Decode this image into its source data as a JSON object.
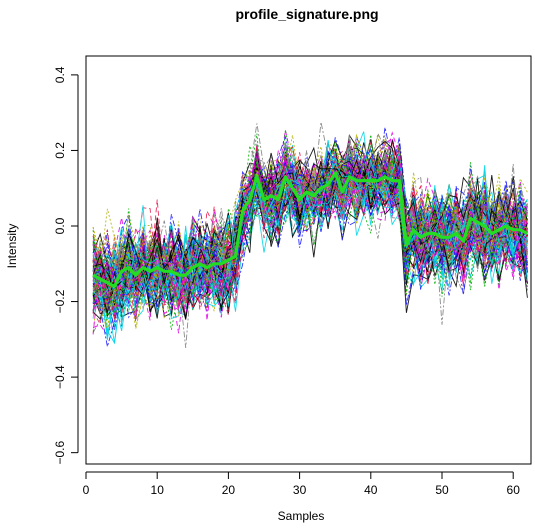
{
  "chart_data": {
    "type": "line",
    "title": "profile_signature.png",
    "xlabel": "Samples",
    "ylabel": "Intensity",
    "xlim": [
      0,
      62.5
    ],
    "ylim": [
      -0.63,
      0.45
    ],
    "x_ticks": [
      0,
      10,
      20,
      30,
      40,
      50,
      60
    ],
    "y_ticks": [
      -0.6,
      -0.4,
      -0.2,
      0.0,
      0.2,
      0.4
    ],
    "x_tick_labels": [
      "0",
      "10",
      "20",
      "30",
      "40",
      "50",
      "60"
    ],
    "y_tick_labels": [
      "−0.6",
      "−0.4",
      "−0.2",
      "0.0",
      "0.2",
      "0.4"
    ],
    "grid": false,
    "legend": "none",
    "n_samples": 62,
    "background_palette": [
      "#000000",
      "#e6194b",
      "#00b000",
      "#1a1aff",
      "#00d5e6",
      "#e600e6",
      "#b0b000",
      "#7f7f7f"
    ],
    "background_line_count": 120,
    "background_group_levels": [
      {
        "from": 1,
        "to": 21,
        "level": -0.14,
        "spread": 0.09
      },
      {
        "from": 22,
        "to": 44,
        "level": 0.08,
        "spread": 0.07
      },
      {
        "from": 45,
        "to": 62,
        "level": -0.01,
        "spread": 0.09
      }
    ],
    "signature": {
      "name": "",
      "color": "#22dd22",
      "x": [
        1,
        2,
        3,
        4,
        5,
        6,
        7,
        8,
        9,
        10,
        11,
        12,
        13,
        14,
        15,
        16,
        17,
        18,
        19,
        20,
        21,
        22,
        23,
        24,
        25,
        26,
        27,
        28,
        29,
        30,
        31,
        32,
        33,
        34,
        35,
        36,
        37,
        38,
        39,
        40,
        41,
        42,
        43,
        44,
        45,
        46,
        47,
        48,
        49,
        50,
        51,
        52,
        53,
        54,
        55,
        56,
        57,
        58,
        59,
        60,
        61,
        62
      ],
      "values": [
        -0.13,
        -0.14,
        -0.15,
        -0.16,
        -0.12,
        -0.11,
        -0.13,
        -0.11,
        -0.12,
        -0.11,
        -0.12,
        -0.12,
        -0.13,
        -0.13,
        -0.11,
        -0.1,
        -0.11,
        -0.1,
        -0.1,
        -0.09,
        -0.08,
        0.04,
        0.07,
        0.13,
        0.07,
        0.08,
        0.07,
        0.13,
        0.1,
        0.07,
        0.09,
        0.08,
        0.1,
        0.11,
        0.14,
        0.09,
        0.13,
        0.12,
        0.12,
        0.12,
        0.12,
        0.13,
        0.12,
        0.12,
        -0.05,
        -0.01,
        -0.03,
        -0.02,
        -0.02,
        -0.03,
        -0.03,
        -0.02,
        -0.04,
        0.02,
        0.01,
        0.0,
        -0.02,
        -0.01,
        0.0,
        -0.01,
        -0.01,
        -0.02
      ]
    }
  }
}
